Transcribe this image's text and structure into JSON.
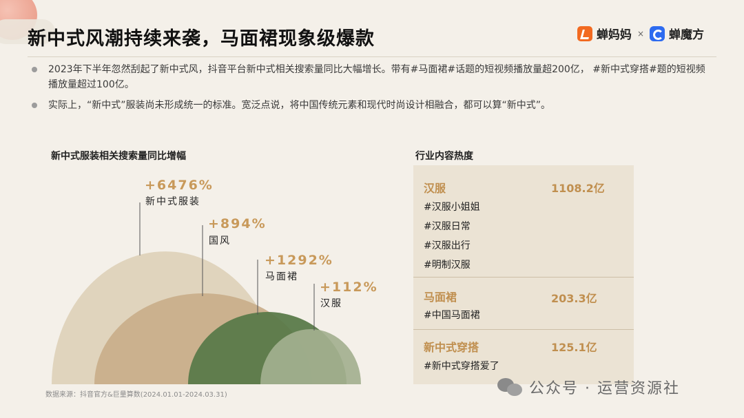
{
  "header": {
    "title": "新中式风潮持续来袭，马面裙现象级爆款",
    "brand_a": "蝉妈妈",
    "brand_sep": "×",
    "brand_b": "蝉魔方"
  },
  "bullets": [
    "2023年下半年忽然刮起了新中式风，抖音平台新中式相关搜索量同比大幅增长。带有#马面裙#话题的短视频播放量超200亿， #新中式穿搭#题的短视频播放量超过100亿。",
    "实际上，“新中式”服装尚未形成统一的标准。宽泛点说，将中国传统元素和现代时尚设计相融合，都可以算“新中式”。"
  ],
  "chart_data": {
    "type": "other",
    "title": "新中式服装相关搜索量同比增幅",
    "items": [
      {
        "name": "新中式服装",
        "value": "+6476%",
        "color": "#e0d4bd"
      },
      {
        "name": "国风",
        "value": "+894%",
        "color": "#c9ae8a"
      },
      {
        "name": "马面裙",
        "value": "+1292%",
        "color": "#5a7a4a"
      },
      {
        "name": "汉服",
        "value": "+112%",
        "color": "#a3b08f"
      }
    ]
  },
  "panel": {
    "title": "行业内容热度",
    "sections": [
      {
        "name": "汉服",
        "value": "1108.2亿",
        "tags": [
          "#汉服小姐姐",
          "#汉服日常",
          "#汉服出行",
          "#明制汉服"
        ]
      },
      {
        "name": "马面裙",
        "value": "203.3亿",
        "tags": [
          "#中国马面裙"
        ]
      },
      {
        "name": "新中式穿搭",
        "value": "125.1亿",
        "tags": [
          "#新中式穿搭爱了"
        ]
      }
    ]
  },
  "footer": {
    "source": "数据来源：抖音官方&巨量算数(2024.01.01-2024.03.31)",
    "watermark": "公众号 · 运营资源社"
  }
}
